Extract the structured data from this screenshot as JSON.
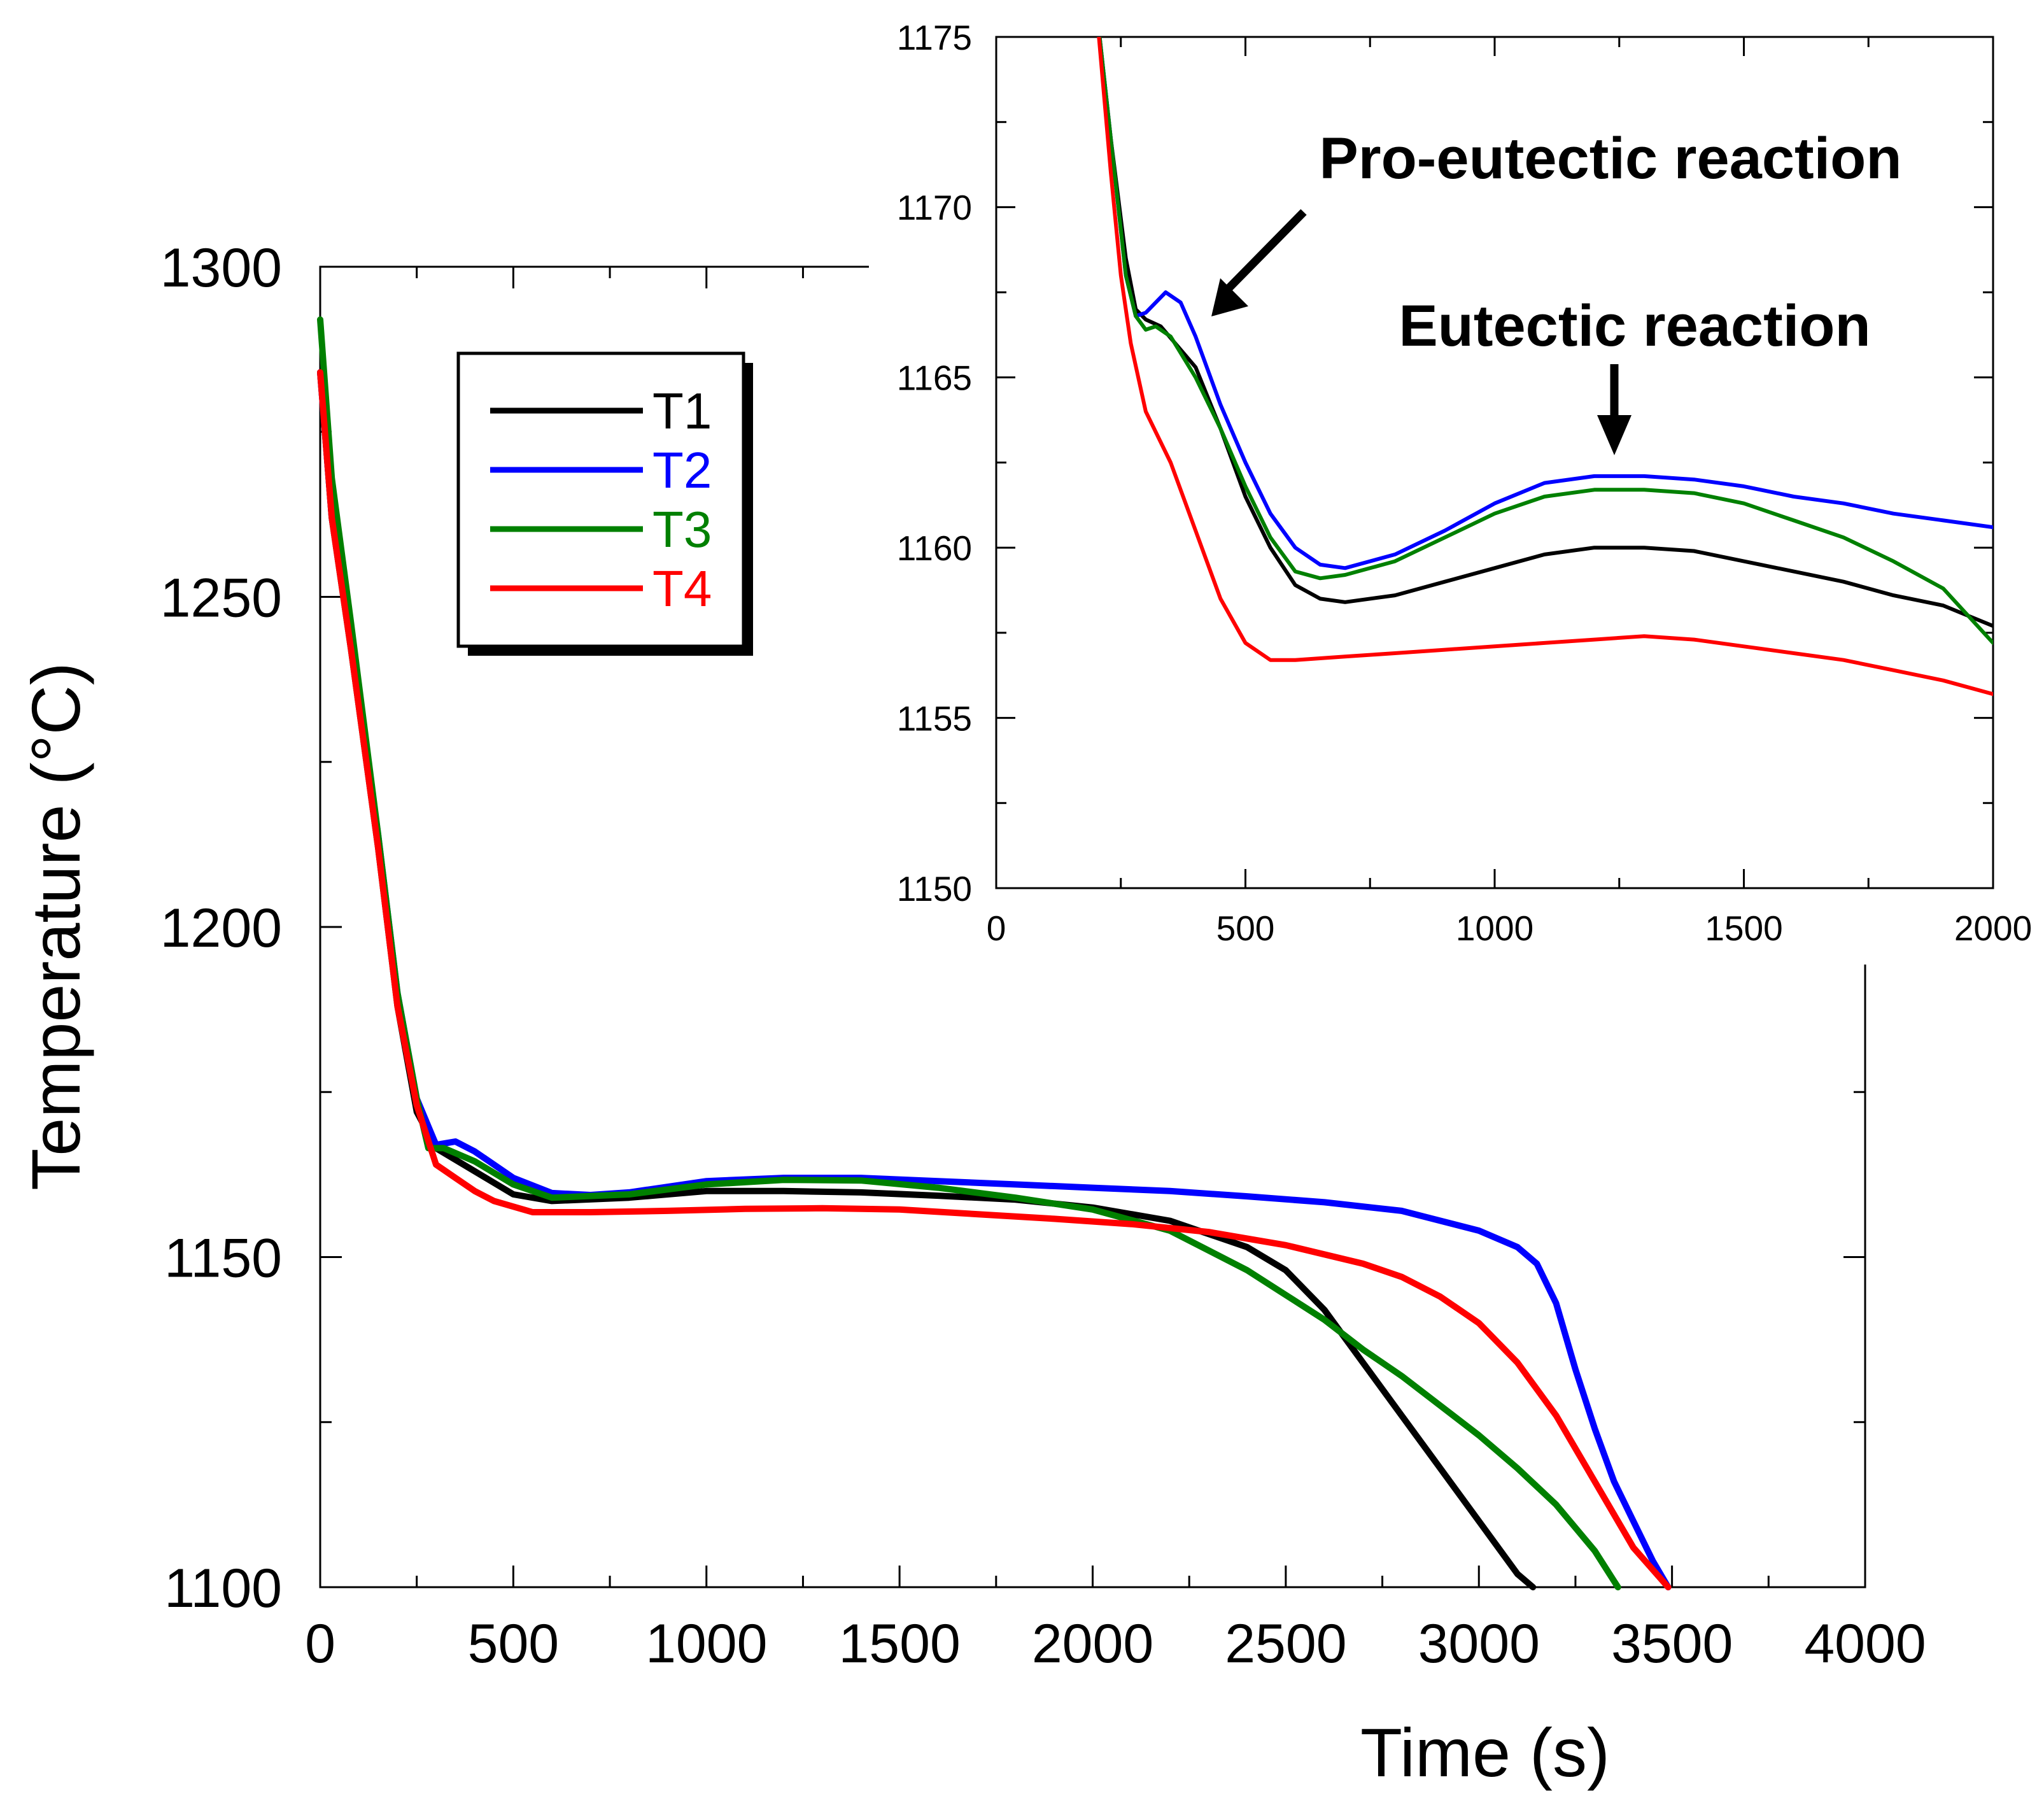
{
  "chart_data": [
    {
      "id": "main",
      "type": "line",
      "xlabel": "Time (s)",
      "ylabel": "Temperature (°C)",
      "xlim": [
        0,
        4000
      ],
      "ylim": [
        1100,
        1300
      ],
      "xticks": [
        0,
        500,
        1000,
        1500,
        2000,
        2500,
        3000,
        3500,
        4000
      ],
      "yticks": [
        1100,
        1150,
        1200,
        1250,
        1300
      ],
      "legend_position": "top-left",
      "series": [
        {
          "name": "T1",
          "color": "#000000",
          "x": [
            0,
            30,
            80,
            150,
            200,
            250,
            300,
            400,
            500,
            600,
            800,
            1000,
            1200,
            1400,
            1600,
            1800,
            2000,
            2200,
            2400,
            2500,
            2600,
            2700,
            2800,
            2900,
            3000,
            3100,
            3140
          ],
          "y": [
            1284,
            1262,
            1242,
            1212,
            1188,
            1172,
            1166.5,
            1163,
            1159.5,
            1158.5,
            1159,
            1160,
            1160,
            1159.8,
            1159.3,
            1158.7,
            1157.5,
            1155.5,
            1151.5,
            1148,
            1142,
            1134,
            1126,
            1118,
            1110,
            1102,
            1100
          ]
        },
        {
          "name": "T2",
          "color": "#0000ff",
          "x": [
            0,
            30,
            80,
            150,
            200,
            250,
            300,
            350,
            400,
            500,
            600,
            700,
            800,
            1000,
            1200,
            1400,
            1600,
            1800,
            2000,
            2200,
            2400,
            2600,
            2800,
            3000,
            3100,
            3150,
            3200,
            3250,
            3300,
            3350,
            3400,
            3450,
            3490
          ],
          "y": [
            1284,
            1262,
            1243,
            1214,
            1190,
            1174,
            1167,
            1167.5,
            1166,
            1162,
            1159.7,
            1159.4,
            1159.8,
            1161.5,
            1162,
            1162,
            1161.5,
            1161,
            1160.5,
            1160,
            1159.2,
            1158.3,
            1157,
            1154,
            1151.5,
            1149,
            1143,
            1133,
            1124,
            1116,
            1110,
            1104,
            1100
          ]
        },
        {
          "name": "T3",
          "color": "#008000",
          "x": [
            0,
            30,
            80,
            150,
            200,
            250,
            280,
            320,
            400,
            500,
            600,
            800,
            1000,
            1200,
            1400,
            1600,
            1800,
            2000,
            2200,
            2400,
            2600,
            2700,
            2800,
            2900,
            3000,
            3100,
            3200,
            3300,
            3360
          ],
          "y": [
            1292,
            1268,
            1246,
            1214,
            1190,
            1174,
            1166.5,
            1166.5,
            1164.5,
            1161,
            1159,
            1159.5,
            1161,
            1161.7,
            1161.6,
            1160.5,
            1159,
            1157.2,
            1154,
            1148,
            1140.5,
            1136,
            1132,
            1127.5,
            1123,
            1118,
            1112.5,
            1105.5,
            1100
          ]
        },
        {
          "name": "T4",
          "color": "#ff0000",
          "x": [
            0,
            30,
            80,
            150,
            200,
            250,
            300,
            350,
            400,
            450,
            550,
            700,
            900,
            1100,
            1300,
            1500,
            1700,
            1900,
            2100,
            2300,
            2500,
            2700,
            2800,
            2900,
            3000,
            3100,
            3200,
            3300,
            3400,
            3490
          ],
          "y": [
            1284,
            1262,
            1242,
            1212,
            1188,
            1173,
            1164,
            1162,
            1160,
            1158.5,
            1156.8,
            1156.8,
            1157,
            1157.3,
            1157.4,
            1157.2,
            1156.5,
            1155.8,
            1155,
            1153.8,
            1151.8,
            1149,
            1147,
            1144,
            1140,
            1134,
            1126,
            1116,
            1106,
            1100
          ]
        }
      ]
    },
    {
      "id": "inset",
      "type": "line",
      "xlabel": "",
      "ylabel": "",
      "xlim": [
        0,
        2000
      ],
      "ylim": [
        1150,
        1175
      ],
      "xticks": [
        0,
        500,
        1000,
        1500,
        2000
      ],
      "yticks": [
        1150,
        1155,
        1160,
        1165,
        1170,
        1175
      ],
      "annotations": [
        {
          "text": "Pro-eutectic reaction",
          "arrow_to_x": 430,
          "arrow_to_y": 1167
        },
        {
          "text": "Eutectic reaction",
          "arrow_to_x": 1250,
          "arrow_to_y": 1162.8
        }
      ],
      "series": [
        {
          "name": "T1",
          "color": "#000000",
          "x": [
            200,
            230,
            260,
            280,
            300,
            330,
            400,
            450,
            500,
            550,
            600,
            650,
            700,
            800,
            900,
            1000,
            1100,
            1200,
            1300,
            1400,
            1500,
            1600,
            1700,
            1800,
            1900,
            2000
          ],
          "y": [
            1176,
            1172,
            1168.5,
            1167,
            1166.7,
            1166.5,
            1165.3,
            1163.5,
            1161.5,
            1160,
            1158.9,
            1158.5,
            1158.4,
            1158.6,
            1159,
            1159.4,
            1159.8,
            1160,
            1160,
            1159.9,
            1159.6,
            1159.3,
            1159,
            1158.6,
            1158.3,
            1157.7
          ]
        },
        {
          "name": "T2",
          "color": "#0000ff",
          "x": [
            200,
            230,
            260,
            280,
            300,
            340,
            370,
            400,
            450,
            500,
            550,
            600,
            650,
            700,
            800,
            900,
            1000,
            1100,
            1200,
            1300,
            1400,
            1500,
            1600,
            1700,
            1800,
            1900,
            2000
          ],
          "y": [
            1176,
            1172,
            1168,
            1166.8,
            1166.9,
            1167.5,
            1167.2,
            1166.2,
            1164.2,
            1162.5,
            1161,
            1160,
            1159.5,
            1159.4,
            1159.8,
            1160.5,
            1161.3,
            1161.9,
            1162.1,
            1162.1,
            1162,
            1161.8,
            1161.5,
            1161.3,
            1161,
            1160.8,
            1160.6
          ]
        },
        {
          "name": "T3",
          "color": "#008000",
          "x": [
            200,
            230,
            260,
            280,
            300,
            320,
            350,
            400,
            450,
            500,
            550,
            600,
            650,
            700,
            800,
            900,
            1000,
            1100,
            1200,
            1300,
            1400,
            1500,
            1600,
            1700,
            1800,
            1900,
            2000
          ],
          "y": [
            1176,
            1172,
            1168,
            1166.8,
            1166.4,
            1166.5,
            1166.2,
            1165,
            1163.5,
            1161.8,
            1160.3,
            1159.3,
            1159.1,
            1159.2,
            1159.6,
            1160.3,
            1161,
            1161.5,
            1161.7,
            1161.7,
            1161.6,
            1161.3,
            1160.8,
            1160.3,
            1159.6,
            1158.8,
            1157.2
          ]
        },
        {
          "name": "T4",
          "color": "#ff0000",
          "x": [
            200,
            230,
            250,
            270,
            300,
            350,
            400,
            450,
            500,
            550,
            600,
            700,
            800,
            900,
            1000,
            1100,
            1200,
            1300,
            1400,
            1500,
            1600,
            1700,
            1800,
            1900,
            2000
          ],
          "y": [
            1176,
            1171,
            1168,
            1166,
            1164,
            1162.5,
            1160.5,
            1158.5,
            1157.2,
            1156.7,
            1156.7,
            1156.8,
            1156.9,
            1157,
            1157.1,
            1157.2,
            1157.3,
            1157.4,
            1157.3,
            1157.1,
            1156.9,
            1156.7,
            1156.4,
            1156.1,
            1155.7
          ]
        }
      ]
    }
  ]
}
